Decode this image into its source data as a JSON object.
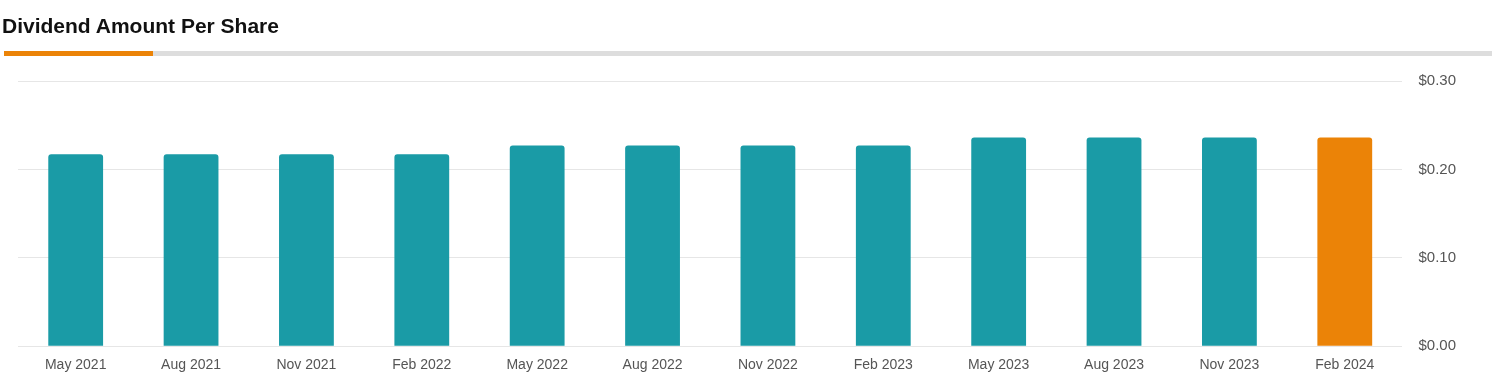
{
  "chart_data": {
    "type": "bar",
    "title": "Dividend Amount Per Share",
    "categories": [
      "May 2021",
      "Aug 2021",
      "Nov 2021",
      "Feb 2022",
      "May 2022",
      "Aug 2022",
      "Nov 2022",
      "Feb 2023",
      "May 2023",
      "Aug 2023",
      "Nov 2023",
      "Feb 2024"
    ],
    "values": [
      0.217,
      0.217,
      0.217,
      0.217,
      0.227,
      0.227,
      0.227,
      0.227,
      0.236,
      0.236,
      0.236,
      0.236
    ],
    "colors": [
      "#1a9ba6",
      "#1a9ba6",
      "#1a9ba6",
      "#1a9ba6",
      "#1a9ba6",
      "#1a9ba6",
      "#1a9ba6",
      "#1a9ba6",
      "#1a9ba6",
      "#1a9ba6",
      "#1a9ba6",
      "#eb8307"
    ],
    "ylim": [
      0,
      0.3
    ],
    "yticks": [
      {
        "value": 0,
        "label": "$0.00"
      },
      {
        "value": 0.1,
        "label": "$0.10"
      },
      {
        "value": 0.2,
        "label": "$0.20"
      },
      {
        "value": 0.3,
        "label": "$0.30"
      }
    ],
    "grid": "y"
  }
}
